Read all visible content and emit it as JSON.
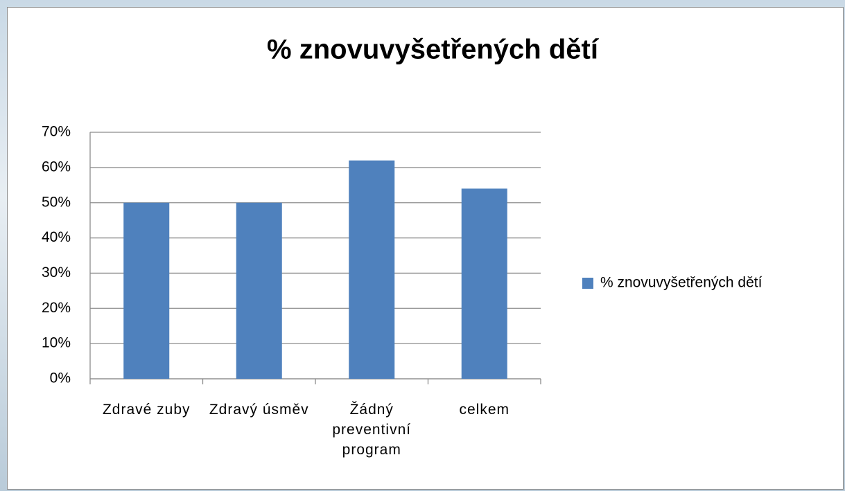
{
  "chart_data": {
    "type": "bar",
    "title": "% znovuvyšetřených dětí",
    "categories": [
      "Zdravé zuby",
      "Zdravý úsměv",
      "Žádný preventivní program",
      "celkem"
    ],
    "series": [
      {
        "name": "% znovuvyšetřených dětí",
        "color": "#4f81bd",
        "values": [
          50,
          50,
          62,
          54
        ]
      }
    ],
    "ylim": [
      0,
      70
    ],
    "yticks": [
      {
        "value": 0,
        "label": "0%"
      },
      {
        "value": 10,
        "label": "10%"
      },
      {
        "value": 20,
        "label": "20%"
      },
      {
        "value": 30,
        "label": "30%"
      },
      {
        "value": 40,
        "label": "40%"
      },
      {
        "value": 50,
        "label": "50%"
      },
      {
        "value": 60,
        "label": "60%"
      },
      {
        "value": 70,
        "label": "70%"
      }
    ],
    "grid": true,
    "legend": "right"
  }
}
